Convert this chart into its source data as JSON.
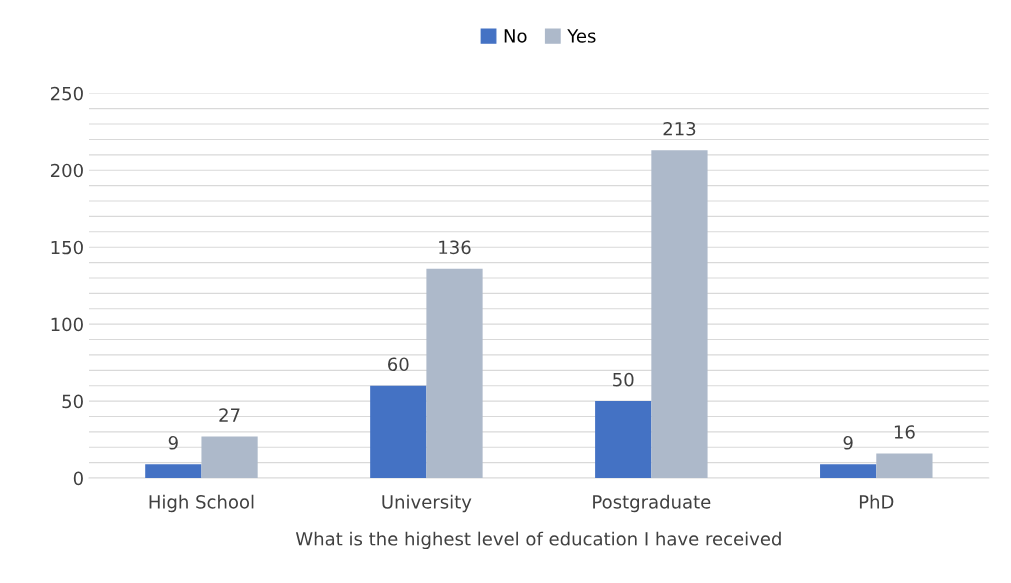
{
  "chart_data": {
    "type": "bar",
    "xlabel": "What is the highest level of education I have received",
    "categories": [
      "High School",
      "University",
      "Postgraduate",
      "PhD"
    ],
    "series": [
      {
        "name": "No",
        "color": "#4472c4",
        "values": [
          9,
          60,
          50,
          9
        ]
      },
      {
        "name": "Yes",
        "color": "#adb9ca",
        "values": [
          27,
          136,
          213,
          16
        ]
      }
    ],
    "ylim": [
      0,
      250
    ],
    "yticks": [
      0,
      {
        "value": 10,
        "label": null
      },
      {
        "value": 20,
        "label": null
      },
      {
        "value": 30,
        "label": null
      },
      {
        "value": 40,
        "label": null
      },
      50,
      {
        "value": 60,
        "label": null
      },
      {
        "value": 70,
        "label": null
      },
      {
        "value": 80,
        "label": null
      },
      {
        "value": 90,
        "label": null
      },
      100,
      {
        "value": 110,
        "label": null
      },
      {
        "value": 120,
        "label": null
      },
      {
        "value": 130,
        "label": null
      },
      {
        "value": 140,
        "label": null
      },
      150,
      {
        "value": 160,
        "label": null
      },
      {
        "value": 170,
        "label": null
      },
      {
        "value": 180,
        "label": null
      },
      {
        "value": 190,
        "label": null
      },
      200,
      {
        "value": 210,
        "label": null
      },
      {
        "value": 220,
        "label": null
      },
      {
        "value": 230,
        "label": null
      },
      {
        "value": 240,
        "label": null
      },
      250
    ],
    "grid": "y",
    "legend": "top",
    "data_labels": true
  }
}
